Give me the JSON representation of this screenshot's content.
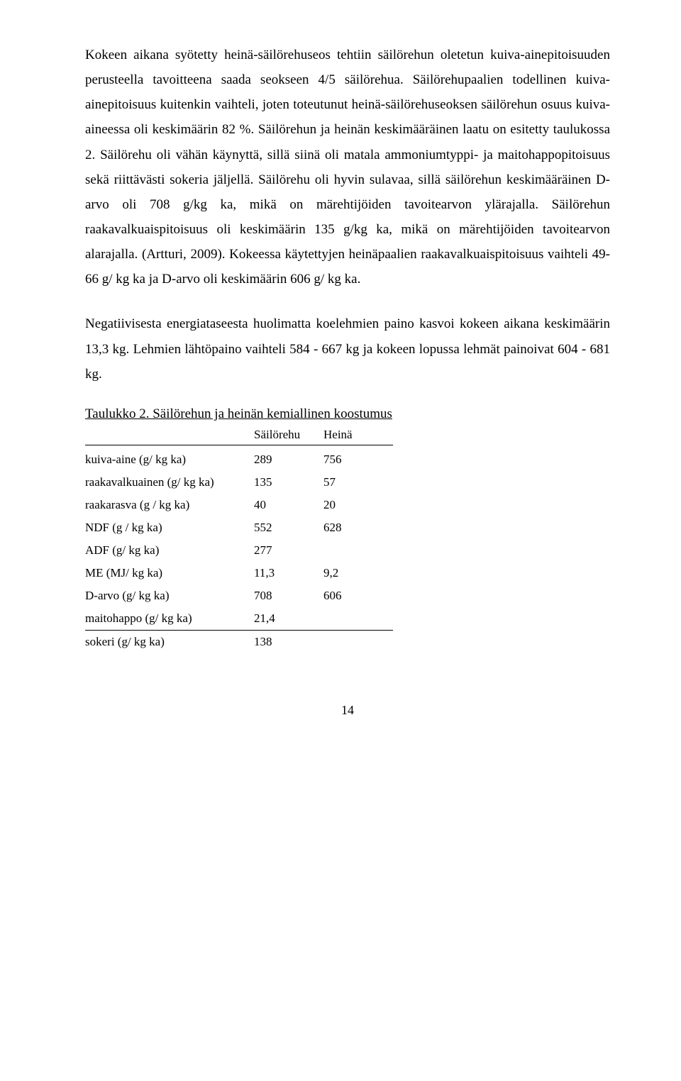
{
  "paragraphs": {
    "p1": "Kokeen aikana syötetty heinä-säilörehuseos tehtiin säilörehun oletetun kuiva-ainepitoisuuden perusteella tavoitteena saada seokseen 4/5 säilörehua. Säilörehupaalien todellinen kuiva-ainepitoisuus kuitenkin vaihteli, joten toteutunut heinä-säilörehuseoksen säilörehun osuus kuiva-aineessa oli keskimäärin 82 %. Säilörehun ja heinän keskimääräinen laatu on esitetty taulukossa 2. Säilörehu oli vähän käynyttä, sillä siinä oli matala ammoniumtyppi- ja maitohappopitoisuus sekä riittävästi sokeria jäljellä. Säilörehu oli hyvin sulavaa, sillä säilörehun keskimääräinen D-arvo oli 708 g/kg ka, mikä on märehtijöiden tavoitearvon ylärajalla. Säilörehun raakavalkuaispitoisuus oli keskimäärin 135 g/kg ka, mikä on märehtijöiden tavoitearvon alarajalla. (Artturi, 2009). Kokeessa käytettyjen heinäpaalien raakavalkuaispitoisuus vaihteli 49- 66 g/ kg ka ja D-arvo oli keskimäärin 606 g/ kg ka.",
    "p2": "Negatiivisesta energiataseesta huolimatta koelehmien paino kasvoi kokeen aikana keskimäärin 13,3 kg. Lehmien lähtöpaino vaihteli 584 - 667 kg ja kokeen lopussa lehmät painoivat 604 - 681 kg."
  },
  "table": {
    "title_underlined": "Taulukko 2. Säilörehun ja heinän kemiallinen koostumus",
    "header": {
      "col1": "",
      "col2": "Säilörehu",
      "col3": "Heinä"
    },
    "rows": [
      {
        "label": "kuiva-aine (g/ kg ka)",
        "sr": "289",
        "heina": "756"
      },
      {
        "label": "raakavalkuainen (g/ kg ka)",
        "sr": "135",
        "heina": "57"
      },
      {
        "label": "raakarasva (g / kg ka)",
        "sr": "40",
        "heina": "20"
      },
      {
        "label": "NDF (g / kg ka)",
        "sr": "552",
        "heina": "628"
      },
      {
        "label": "ADF (g/ kg ka)",
        "sr": "277",
        "heina": ""
      },
      {
        "label": "ME (MJ/ kg ka)",
        "sr": "11,3",
        "heina": "9,2"
      },
      {
        "label": "D-arvo (g/ kg ka)",
        "sr": "708",
        "heina": "606"
      },
      {
        "label": "maitohappo (g/ kg ka)",
        "sr": "21,4",
        "heina": ""
      },
      {
        "label": "sokeri (g/ kg ka)",
        "sr": "138",
        "heina": ""
      }
    ]
  },
  "page_number": "14"
}
